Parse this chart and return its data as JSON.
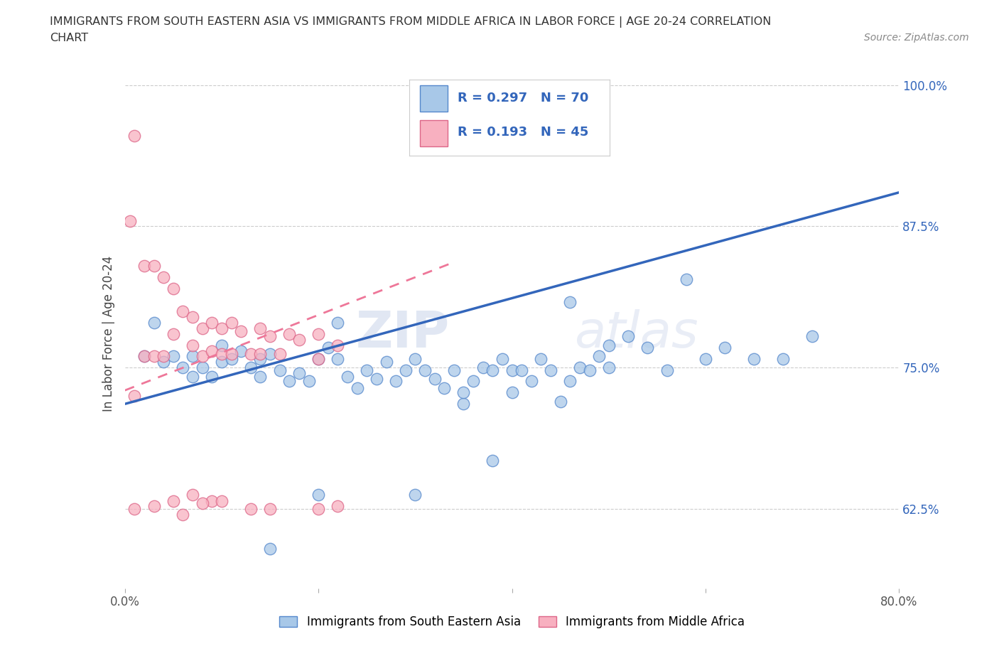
{
  "title_line1": "IMMIGRANTS FROM SOUTH EASTERN ASIA VS IMMIGRANTS FROM MIDDLE AFRICA IN LABOR FORCE | AGE 20-24 CORRELATION",
  "title_line2": "CHART",
  "source": "Source: ZipAtlas.com",
  "ylabel": "In Labor Force | Age 20-24",
  "xlim": [
    0.0,
    0.8
  ],
  "ylim": [
    0.555,
    1.005
  ],
  "xticks": [
    0.0,
    0.2,
    0.4,
    0.6,
    0.8
  ],
  "xticklabels": [
    "0.0%",
    "",
    "",
    "",
    "80.0%"
  ],
  "yticks": [
    0.625,
    0.75,
    0.875,
    1.0
  ],
  "yticklabels": [
    "62.5%",
    "75.0%",
    "87.5%",
    "100.0%"
  ],
  "blue_color": "#a8c8e8",
  "blue_edge": "#5588cc",
  "pink_color": "#f8b0c0",
  "pink_edge": "#dd6688",
  "trend_blue": "#3366bb",
  "trend_pink": "#ee7799",
  "R_blue": 0.297,
  "N_blue": 70,
  "R_pink": 0.193,
  "N_pink": 45,
  "legend_R_color": "#3366bb",
  "watermark": "ZIPatlas",
  "blue_x": [
    0.02,
    0.03,
    0.04,
    0.05,
    0.06,
    0.07,
    0.07,
    0.08,
    0.09,
    0.1,
    0.1,
    0.11,
    0.12,
    0.13,
    0.14,
    0.14,
    0.15,
    0.16,
    0.17,
    0.18,
    0.19,
    0.2,
    0.21,
    0.22,
    0.23,
    0.24,
    0.25,
    0.26,
    0.27,
    0.28,
    0.29,
    0.3,
    0.31,
    0.32,
    0.33,
    0.34,
    0.35,
    0.36,
    0.37,
    0.38,
    0.39,
    0.4,
    0.41,
    0.42,
    0.43,
    0.44,
    0.45,
    0.46,
    0.47,
    0.48,
    0.49,
    0.5,
    0.52,
    0.54,
    0.56,
    0.58,
    0.6,
    0.62,
    0.65,
    0.68,
    0.71,
    0.3,
    0.2,
    0.4,
    0.15,
    0.35,
    0.5,
    0.22,
    0.46,
    0.38
  ],
  "blue_y": [
    0.76,
    0.79,
    0.755,
    0.76,
    0.75,
    0.76,
    0.742,
    0.75,
    0.742,
    0.755,
    0.77,
    0.758,
    0.765,
    0.75,
    0.758,
    0.742,
    0.762,
    0.748,
    0.738,
    0.745,
    0.738,
    0.758,
    0.768,
    0.758,
    0.742,
    0.732,
    0.748,
    0.74,
    0.755,
    0.738,
    0.748,
    0.758,
    0.748,
    0.74,
    0.732,
    0.748,
    0.718,
    0.738,
    0.75,
    0.748,
    0.758,
    0.748,
    0.748,
    0.738,
    0.758,
    0.748,
    0.72,
    0.738,
    0.75,
    0.748,
    0.76,
    0.77,
    0.778,
    0.768,
    0.748,
    0.828,
    0.758,
    0.768,
    0.758,
    0.758,
    0.778,
    0.638,
    0.638,
    0.728,
    0.59,
    0.728,
    0.75,
    0.79,
    0.808,
    0.668
  ],
  "pink_x": [
    0.005,
    0.01,
    0.01,
    0.02,
    0.02,
    0.03,
    0.03,
    0.04,
    0.04,
    0.05,
    0.05,
    0.06,
    0.07,
    0.07,
    0.08,
    0.08,
    0.09,
    0.09,
    0.1,
    0.1,
    0.11,
    0.11,
    0.12,
    0.13,
    0.14,
    0.14,
    0.15,
    0.16,
    0.17,
    0.18,
    0.2,
    0.2,
    0.22,
    0.01,
    0.03,
    0.06,
    0.09,
    0.13,
    0.2,
    0.08,
    0.05,
    0.07,
    0.22,
    0.15,
    0.1
  ],
  "pink_y": [
    0.88,
    0.955,
    0.725,
    0.84,
    0.76,
    0.84,
    0.76,
    0.83,
    0.76,
    0.82,
    0.78,
    0.8,
    0.795,
    0.77,
    0.785,
    0.76,
    0.79,
    0.765,
    0.785,
    0.762,
    0.79,
    0.762,
    0.782,
    0.762,
    0.785,
    0.762,
    0.778,
    0.762,
    0.78,
    0.775,
    0.78,
    0.758,
    0.77,
    0.625,
    0.628,
    0.62,
    0.632,
    0.625,
    0.625,
    0.63,
    0.632,
    0.638,
    0.628,
    0.625,
    0.632
  ]
}
